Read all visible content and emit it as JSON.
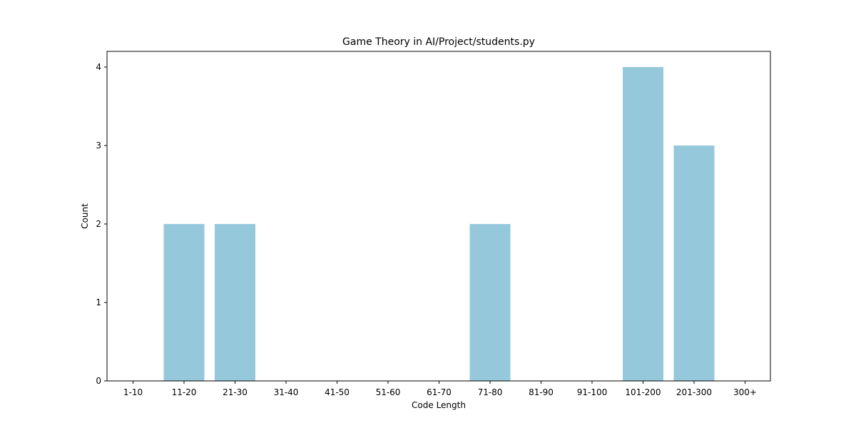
{
  "chart_data": {
    "type": "bar",
    "title": "Game Theory in AI/Project/students.py",
    "xlabel": "Code Length",
    "ylabel": "Count",
    "categories": [
      "1-10",
      "11-20",
      "21-30",
      "31-40",
      "41-50",
      "51-60",
      "61-70",
      "71-80",
      "81-90",
      "91-100",
      "101-200",
      "201-300",
      "300+"
    ],
    "values": [
      0,
      2,
      2,
      0,
      0,
      0,
      0,
      2,
      0,
      0,
      4,
      3,
      0
    ],
    "ylim": [
      0,
      4.2
    ],
    "yticks": [
      0,
      1,
      2,
      3,
      4
    ],
    "grid": false,
    "legend": false,
    "bar_color": "#96c8dc"
  }
}
